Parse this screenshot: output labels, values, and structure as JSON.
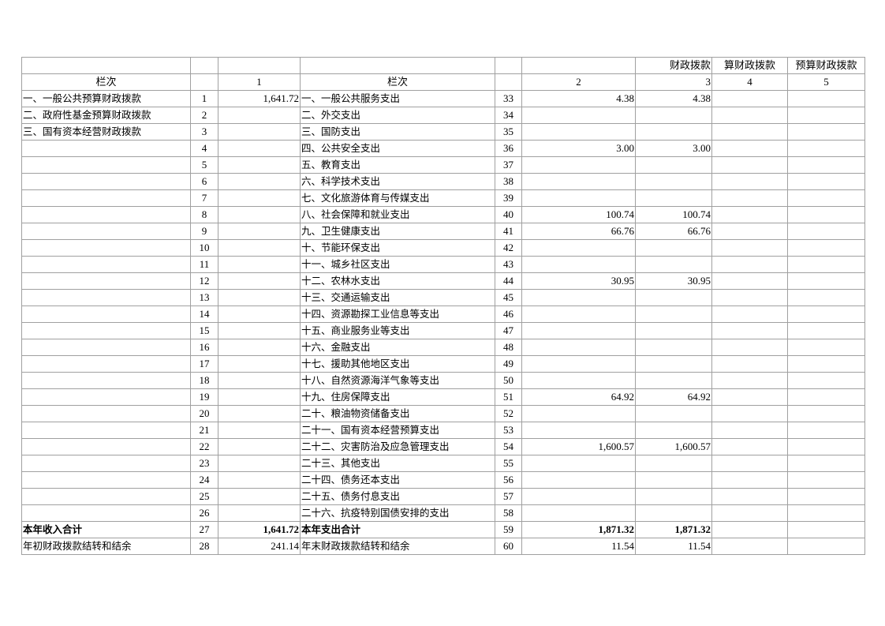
{
  "header_top": [
    "",
    "",
    "",
    "",
    "",
    "",
    "财政拨款",
    "算财政拨款",
    "预算财政拨款"
  ],
  "header_cols": [
    "栏次",
    "",
    "1",
    "栏次",
    "",
    "2",
    "3",
    "4",
    "5"
  ],
  "rows": [
    [
      "一、一般公共预算财政拨款",
      "1",
      "1,641.72",
      "一、一般公共服务支出",
      "33",
      "4.38",
      "4.38",
      "",
      ""
    ],
    [
      "二、政府性基金预算财政拨款",
      "2",
      "",
      "二、外交支出",
      "34",
      "",
      "",
      "",
      ""
    ],
    [
      "三、国有资本经营财政拨款",
      "3",
      "",
      "三、国防支出",
      "35",
      "",
      "",
      "",
      ""
    ],
    [
      "",
      "4",
      "",
      "四、公共安全支出",
      "36",
      "3.00",
      "3.00",
      "",
      ""
    ],
    [
      "",
      "5",
      "",
      "五、教育支出",
      "37",
      "",
      "",
      "",
      ""
    ],
    [
      "",
      "6",
      "",
      "六、科学技术支出",
      "38",
      "",
      "",
      "",
      ""
    ],
    [
      "",
      "7",
      "",
      "七、文化旅游体育与传媒支出",
      "39",
      "",
      "",
      "",
      ""
    ],
    [
      "",
      "8",
      "",
      "八、社会保障和就业支出",
      "40",
      "100.74",
      "100.74",
      "",
      ""
    ],
    [
      "",
      "9",
      "",
      "九、卫生健康支出",
      "41",
      "66.76",
      "66.76",
      "",
      ""
    ],
    [
      "",
      "10",
      "",
      "十、节能环保支出",
      "42",
      "",
      "",
      "",
      ""
    ],
    [
      "",
      "11",
      "",
      "十一、城乡社区支出",
      "43",
      "",
      "",
      "",
      ""
    ],
    [
      "",
      "12",
      "",
      "十二、农林水支出",
      "44",
      "30.95",
      "30.95",
      "",
      ""
    ],
    [
      "",
      "13",
      "",
      "十三、交通运输支出",
      "45",
      "",
      "",
      "",
      ""
    ],
    [
      "",
      "14",
      "",
      "十四、资源勘探工业信息等支出",
      "46",
      "",
      "",
      "",
      ""
    ],
    [
      "",
      "15",
      "",
      "十五、商业服务业等支出",
      "47",
      "",
      "",
      "",
      ""
    ],
    [
      "",
      "16",
      "",
      "十六、金融支出",
      "48",
      "",
      "",
      "",
      ""
    ],
    [
      "",
      "17",
      "",
      "十七、援助其他地区支出",
      "49",
      "",
      "",
      "",
      ""
    ],
    [
      "",
      "18",
      "",
      "十八、自然资源海洋气象等支出",
      "50",
      "",
      "",
      "",
      ""
    ],
    [
      "",
      "19",
      "",
      "十九、住房保障支出",
      "51",
      "64.92",
      "64.92",
      "",
      ""
    ],
    [
      "",
      "20",
      "",
      "二十、粮油物资储备支出",
      "52",
      "",
      "",
      "",
      ""
    ],
    [
      "",
      "21",
      "",
      "二十一、国有资本经营预算支出",
      "53",
      "",
      "",
      "",
      ""
    ],
    [
      "",
      "22",
      "",
      "二十二、灾害防治及应急管理支出",
      "54",
      "1,600.57",
      "1,600.57",
      "",
      ""
    ],
    [
      "",
      "23",
      "",
      "二十三、其他支出",
      "55",
      "",
      "",
      "",
      ""
    ],
    [
      "",
      "24",
      "",
      "二十四、债务还本支出",
      "56",
      "",
      "",
      "",
      ""
    ],
    [
      "",
      "25",
      "",
      "二十五、债务付息支出",
      "57",
      "",
      "",
      "",
      ""
    ],
    [
      "",
      "26",
      "",
      "二十六、抗疫特别国债安排的支出",
      "58",
      "",
      "",
      "",
      ""
    ]
  ],
  "total_row": [
    "本年收入合计",
    "27",
    "1,641.72",
    "本年支出合计",
    "59",
    "1,871.32",
    "1,871.32",
    "",
    ""
  ],
  "balance_row": [
    "年初财政拨款结转和结余",
    "28",
    "241.14",
    "年末财政拨款结转和结余",
    "60",
    "11.54",
    "11.54",
    "",
    ""
  ]
}
